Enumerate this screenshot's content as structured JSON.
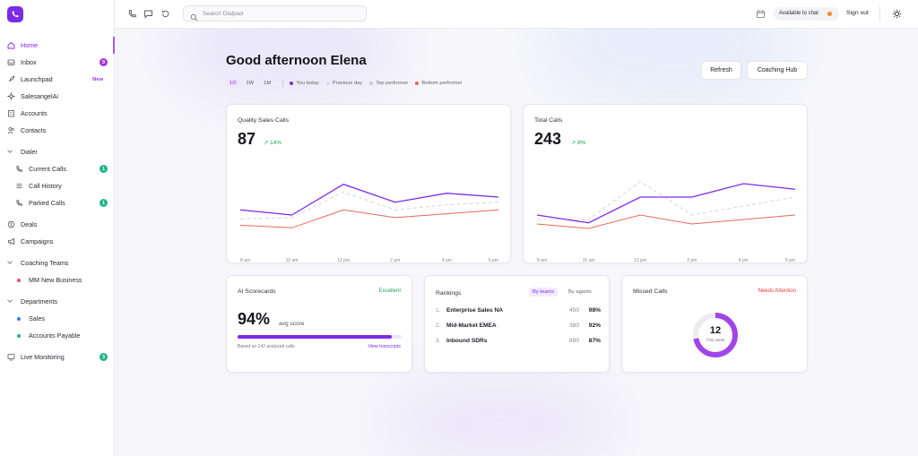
{
  "sidebar": {
    "items": [
      {
        "label": "Home",
        "icon": "home-icon",
        "badge": "",
        "active": true
      },
      {
        "label": "Inbox",
        "icon": "inbox-icon",
        "badge": "9"
      },
      {
        "label": "Launchpad",
        "icon": "rocket-icon",
        "badge": "New"
      },
      {
        "label": "SalesangelAi",
        "icon": "sparkle-icon",
        "badge": ""
      },
      {
        "label": "Accounts",
        "icon": "building-icon",
        "badge": ""
      },
      {
        "label": "Contacts",
        "icon": "people-icon",
        "badge": ""
      }
    ],
    "dialer": {
      "label": "Dialer",
      "items": [
        {
          "label": "Current Calls",
          "icon": "phone-call-icon",
          "badge": "1"
        },
        {
          "label": "Call History",
          "icon": "list-icon",
          "badge": ""
        },
        {
          "label": "Parked Calls",
          "icon": "phone-pause-icon",
          "badge": "1"
        }
      ]
    },
    "more": [
      {
        "label": "Deals",
        "icon": "deals-icon"
      },
      {
        "label": "Campaigns",
        "icon": "megaphone-icon"
      }
    ],
    "coaching": {
      "label": "Coaching Teams",
      "items": [
        {
          "label": "MM New Business",
          "color": "#e84a7c"
        }
      ]
    },
    "departments": {
      "label": "Departments",
      "items": [
        {
          "label": "Sales",
          "color": "#3a7be8"
        },
        {
          "label": "Accounts Payable",
          "color": "#1fb58a"
        }
      ]
    },
    "live": {
      "label": "Live Monitoring",
      "icon": "monitor-icon",
      "badge": "3"
    }
  },
  "topbar": {
    "search_placeholder": "Search Dialpad",
    "availability": "Available to chat",
    "sign_out": "Sign out"
  },
  "main": {
    "greeting": "Good afternoon Elena",
    "ranges": [
      "1D",
      "1W",
      "1M"
    ],
    "selected_range": "1D",
    "legend": [
      {
        "label": "You today",
        "color": "#7c2ae8"
      },
      {
        "label": "Previous day",
        "color": "#dcdce2"
      },
      {
        "label": "Top performer",
        "color": "#c8c8d0"
      },
      {
        "label": "Bottom performer",
        "color": "#e8685a"
      }
    ],
    "refresh_label": "Refresh",
    "coaching_hub_label": "Coaching Hub"
  },
  "quality_card": {
    "title": "Quality Sales Calls",
    "value": "87",
    "delta": "↗ 14%"
  },
  "total_card": {
    "title": "Total Calls",
    "value": "243",
    "delta": "↗ 8%"
  },
  "chart_data": [
    {
      "type": "line",
      "title": "Quality Sales Calls",
      "categories": [
        "8 am",
        "10 am",
        "12 pm",
        "2 pm",
        "4 pm",
        "6 pm"
      ],
      "series": [
        {
          "name": "You today",
          "values": [
            72,
            68,
            92,
            78,
            85,
            82
          ]
        },
        {
          "name": "Previous day",
          "values": [
            65,
            66,
            86,
            72,
            76,
            78
          ]
        },
        {
          "name": "Bottom performer",
          "values": [
            60,
            58,
            72,
            66,
            69,
            72
          ]
        }
      ],
      "ylim": [
        40,
        110
      ]
    },
    {
      "type": "line",
      "title": "Total Calls",
      "categories": [
        "8 am",
        "10 am",
        "12 pm",
        "2 pm",
        "4 pm",
        "6 pm"
      ],
      "series": [
        {
          "name": "You today",
          "values": [
            72,
            65,
            88,
            88,
            100,
            95
          ]
        },
        {
          "name": "Previous day",
          "values": [
            68,
            68,
            102,
            72,
            80,
            88
          ]
        },
        {
          "name": "Bottom performer",
          "values": [
            64,
            60,
            72,
            64,
            68,
            72
          ]
        }
      ],
      "ylim": [
        40,
        120
      ]
    }
  ],
  "ai_card": {
    "title": "AI Scorecards",
    "tag": "Excellent",
    "value": "94%",
    "unit": "avg score",
    "progress": 0.94,
    "note": "Based on 142 analyzed calls",
    "link": "View transcripts"
  },
  "rankings_card": {
    "title": "Rankings",
    "tab_teams": "By teams",
    "tab_agents": "By agents",
    "rows": [
      {
        "rank": "1.",
        "name": "Enterprise Sales NA",
        "count": "450",
        "pct": "98%"
      },
      {
        "rank": "2.",
        "name": "Mid-Market EMEA",
        "count": "380",
        "pct": "92%"
      },
      {
        "rank": "3.",
        "name": "Inbound SDRs",
        "count": "890",
        "pct": "87%"
      }
    ]
  },
  "missed_card": {
    "title": "Missed Calls",
    "tag": "Needs Attention",
    "value": "12",
    "sub": "This week",
    "fraction": 0.72
  },
  "colors": {
    "accent": "#7c2ae8",
    "success": "#22a35a",
    "danger": "#e23b3b",
    "bottom": "#e8685a"
  }
}
